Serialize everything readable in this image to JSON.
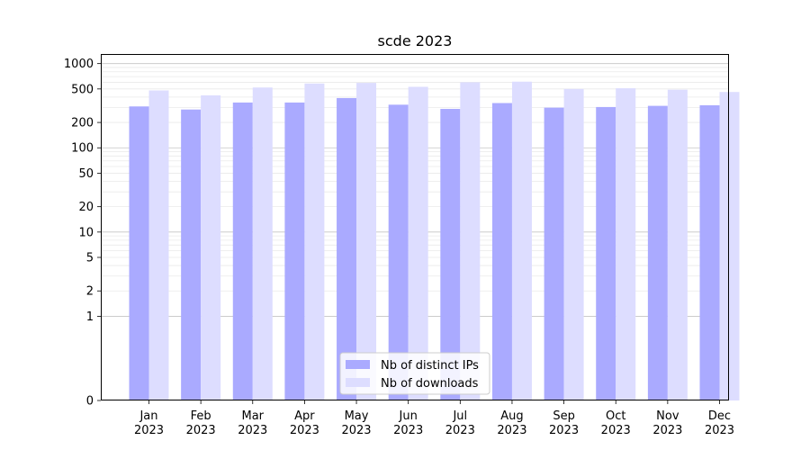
{
  "chart_data": {
    "type": "bar",
    "title": "scde 2023",
    "xlabel": "",
    "ylabel": "",
    "yscale": "symlog",
    "yticks": [
      "0",
      "1",
      "2",
      "5",
      "10",
      "20",
      "50",
      "100",
      "200",
      "500",
      "1000"
    ],
    "categories": [
      {
        "month": "Jan",
        "year": "2023"
      },
      {
        "month": "Feb",
        "year": "2023"
      },
      {
        "month": "Mar",
        "year": "2023"
      },
      {
        "month": "Apr",
        "year": "2023"
      },
      {
        "month": "May",
        "year": "2023"
      },
      {
        "month": "Jun",
        "year": "2023"
      },
      {
        "month": "Jul",
        "year": "2023"
      },
      {
        "month": "Aug",
        "year": "2023"
      },
      {
        "month": "Sep",
        "year": "2023"
      },
      {
        "month": "Oct",
        "year": "2023"
      },
      {
        "month": "Nov",
        "year": "2023"
      },
      {
        "month": "Dec",
        "year": "2023"
      }
    ],
    "series": [
      {
        "name": "Nb of distinct IPs",
        "color": "#aaaaff",
        "values": [
          310,
          285,
          345,
          345,
          390,
          325,
          290,
          340,
          300,
          305,
          315,
          320
        ]
      },
      {
        "name": "Nb of downloads",
        "color": "#ddddff",
        "values": [
          480,
          420,
          520,
          580,
          590,
          530,
          600,
          610,
          500,
          510,
          490,
          460
        ]
      }
    ],
    "legend": "lower-center",
    "grid": true
  }
}
